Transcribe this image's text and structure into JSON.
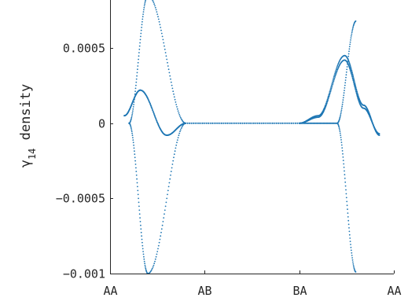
{
  "chart_data": {
    "type": "scatter",
    "title": "",
    "xlabel": "",
    "ylabel": "γ14 density",
    "ylabel_base": "γ",
    "ylabel_sub": "14",
    "ylabel_rest": " density",
    "x_ticks": [
      "AA",
      "AB",
      "BA",
      "AA"
    ],
    "y_ticks": [
      {
        "value": 0.0005,
        "label": "0.0005"
      },
      {
        "value": 0,
        "label": "0"
      },
      {
        "value": -0.0005,
        "label": "−0.0005"
      },
      {
        "value": -0.001,
        "label": "−0.001"
      }
    ],
    "xlim": [
      0,
      3
    ],
    "ylim": [
      -0.001,
      0.00082
    ],
    "grid": false,
    "marker_color": "#1f77b4",
    "series": [
      {
        "x": [
          0.15,
          0.32,
          0.6,
          0.8,
          2.0,
          2.2,
          2.48,
          2.68,
          2.85
        ],
        "values": [
          5e-05,
          0.00022,
          -8e-05,
          0.0,
          0.0,
          5e-05,
          0.00045,
          0.00012,
          -8e-05
        ]
      },
      {
        "x": [
          0.15,
          0.32,
          0.6,
          0.8,
          2.0,
          2.2,
          2.48,
          2.68,
          2.85
        ],
        "values": [
          5e-05,
          0.00022,
          -8e-05,
          0.0,
          0.0,
          4e-05,
          0.00042,
          0.0001,
          -7e-05
        ]
      },
      {
        "x": [
          0.2,
          0.4,
          0.8,
          2.0,
          2.4,
          2.6
        ],
        "values": [
          0.0,
          0.00085,
          0.0,
          0.0,
          0.0,
          0.00068
        ]
      },
      {
        "x": [
          0.2,
          0.4,
          0.8,
          2.0,
          2.4,
          2.6
        ],
        "values": [
          0.0,
          -0.001,
          0.0,
          0.0,
          0.0,
          -0.00099
        ]
      }
    ]
  }
}
